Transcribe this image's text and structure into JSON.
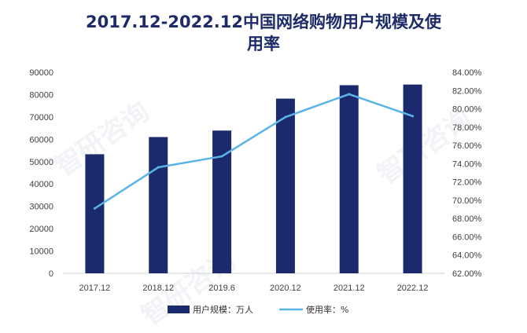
{
  "title": {
    "line1": "2017.12-2022.12中国网络购物用户规模及使",
    "line2": "用率"
  },
  "watermark": "智研咨询",
  "chart_data": {
    "type": "bar+line",
    "categories": [
      "2017.12",
      "2018.12",
      "2019.6",
      "2020.12",
      "2021.12",
      "2022.12"
    ],
    "series": [
      {
        "name": "用户规模：万人",
        "type": "bar",
        "axis": "left",
        "color": "#1a2a6c",
        "values": [
          53300,
          61000,
          63900,
          78200,
          84200,
          84500
        ]
      },
      {
        "name": "使用率：%",
        "type": "line",
        "axis": "right",
        "color": "#5bb4e8",
        "values": [
          69.1,
          73.6,
          74.8,
          79.1,
          81.6,
          79.2
        ]
      }
    ],
    "yleft": {
      "lim": [
        0,
        90000
      ],
      "ticks": [
        "0",
        "10000",
        "20000",
        "30000",
        "40000",
        "50000",
        "60000",
        "70000",
        "80000",
        "90000"
      ]
    },
    "yright": {
      "lim": [
        62,
        84
      ],
      "ticks": [
        "62.00%",
        "64.00%",
        "66.00%",
        "68.00%",
        "70.00%",
        "72.00%",
        "74.00%",
        "76.00%",
        "78.00%",
        "80.00%",
        "82.00%",
        "84.00%"
      ]
    },
    "grid": false,
    "legend": "bottom"
  }
}
